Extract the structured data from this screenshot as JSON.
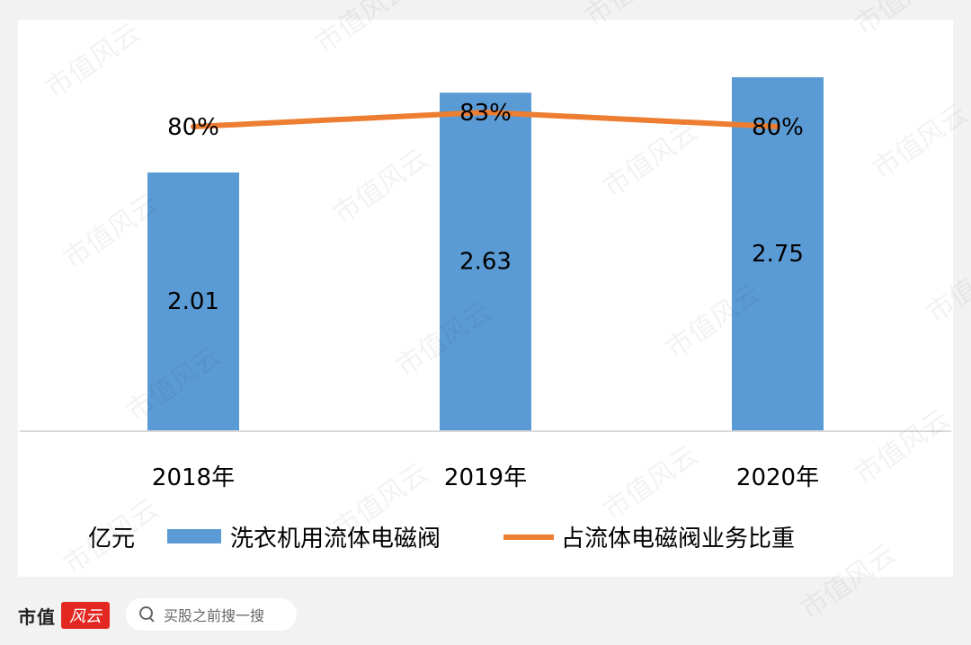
{
  "chart_data": {
    "type": "bar",
    "categories": [
      "2018年",
      "2019年",
      "2020年"
    ],
    "series": [
      {
        "name": "洗衣机用流体电磁阀",
        "type": "bar",
        "values": [
          2.01,
          2.63,
          2.75
        ],
        "labels": [
          "2.01",
          "2.63",
          "2.75"
        ],
        "color": "#5b9bd5"
      },
      {
        "name": "占流体电磁阀业务比重",
        "type": "line",
        "values": [
          80,
          83,
          80
        ],
        "labels": [
          "80%",
          "83%",
          "80%"
        ],
        "color": "#ed7d31"
      }
    ],
    "ylim": [
      0,
      2.75
    ],
    "y2lim": [
      0,
      83
    ],
    "unit_label": "亿元",
    "grid": false
  },
  "footer": {
    "brand": "市值",
    "logo_text": "风云",
    "search_placeholder": "买股之前搜一搜"
  },
  "watermark_text": "市值风云",
  "colors": {
    "background": "#f2f2f2",
    "card": "#ffffff",
    "axis": "#d9d9d9",
    "text": "#000000"
  }
}
